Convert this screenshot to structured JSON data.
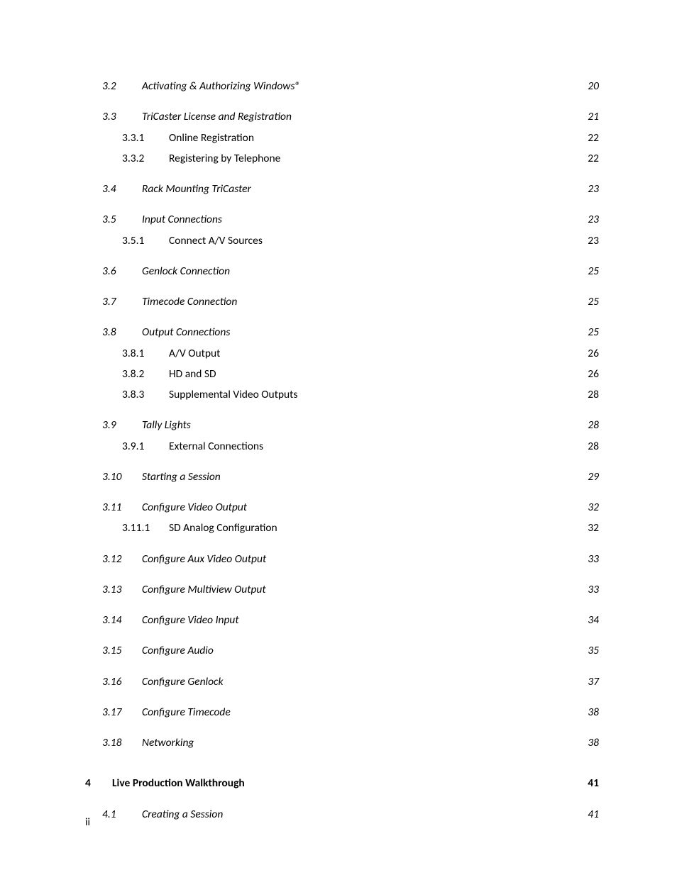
{
  "toc": {
    "entries": [
      {
        "level": 2,
        "num": "3.2",
        "title": "Activating & Authorizing Windows®",
        "page": "20",
        "groupStart": true
      },
      {
        "level": 2,
        "num": "3.3",
        "title": "TriCaster License and Registration",
        "page": "21",
        "groupStart": true
      },
      {
        "level": 3,
        "num": "3.3.1",
        "title": "Online Registration",
        "page": "22"
      },
      {
        "level": 3,
        "num": "3.3.2",
        "title": "Registering by Telephone",
        "page": "22"
      },
      {
        "level": 2,
        "num": "3.4",
        "title": "Rack Mounting TriCaster",
        "page": "23",
        "groupStart": true
      },
      {
        "level": 2,
        "num": "3.5",
        "title": "Input Connections",
        "page": "23",
        "groupStart": true
      },
      {
        "level": 3,
        "num": "3.5.1",
        "title": "Connect A/V Sources",
        "page": "23"
      },
      {
        "level": 2,
        "num": "3.6",
        "title": "Genlock Connection",
        "page": "25",
        "groupStart": true
      },
      {
        "level": 2,
        "num": "3.7",
        "title": "Timecode Connection",
        "page": "25",
        "groupStart": true
      },
      {
        "level": 2,
        "num": "3.8",
        "title": "Output Connections",
        "page": "25",
        "groupStart": true
      },
      {
        "level": 3,
        "num": "3.8.1",
        "title": "A/V Output",
        "page": "26"
      },
      {
        "level": 3,
        "num": "3.8.2",
        "title": "HD and SD",
        "page": "26"
      },
      {
        "level": 3,
        "num": "3.8.3",
        "title": "Supplemental Video Outputs",
        "page": "28"
      },
      {
        "level": 2,
        "num": "3.9",
        "title": "Tally Lights",
        "page": "28",
        "groupStart": true
      },
      {
        "level": 3,
        "num": "3.9.1",
        "title": "External Connections",
        "page": "28"
      },
      {
        "level": 2,
        "num": "3.10",
        "title": "Starting a Session",
        "page": "29",
        "groupStart": true
      },
      {
        "level": 2,
        "num": "3.11",
        "title": "Configure Video Output",
        "page": "32",
        "groupStart": true
      },
      {
        "level": 3,
        "num": "3.11.1",
        "title": "SD Analog Configuration",
        "page": "32"
      },
      {
        "level": 2,
        "num": "3.12",
        "title": "Configure Aux Video Output",
        "page": "33",
        "groupStart": true
      },
      {
        "level": 2,
        "num": "3.13",
        "title": "Configure Multiview Output",
        "page": "33",
        "groupStart": true
      },
      {
        "level": 2,
        "num": "3.14",
        "title": "Configure Video Input",
        "page": "34",
        "groupStart": true
      },
      {
        "level": 2,
        "num": "3.15",
        "title": "Configure Audio",
        "page": "35",
        "groupStart": true
      },
      {
        "level": 2,
        "num": "3.16",
        "title": "Configure Genlock",
        "page": "37",
        "groupStart": true
      },
      {
        "level": 2,
        "num": "3.17",
        "title": "Configure Timecode",
        "page": "38",
        "groupStart": true
      },
      {
        "level": 2,
        "num": "3.18",
        "title": "Networking",
        "page": "38",
        "groupStart": true
      },
      {
        "level": 1,
        "num": "4",
        "title": "Live Production Walkthrough",
        "page": "41",
        "groupStart": true,
        "chapter": true
      },
      {
        "level": 2,
        "num": "4.1",
        "title": "Creating a Session",
        "page": "41",
        "groupStart": true
      }
    ]
  },
  "pageNumber": "ii"
}
